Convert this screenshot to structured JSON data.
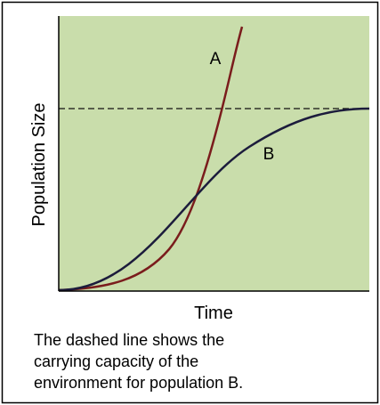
{
  "labels": {
    "y_axis": "Population Size",
    "x_axis": "Time",
    "curve_a": "A",
    "curve_b": "B"
  },
  "caption": [
    "The dashed line shows the",
    "carrying capacity of the",
    "environment for population B."
  ]
}
